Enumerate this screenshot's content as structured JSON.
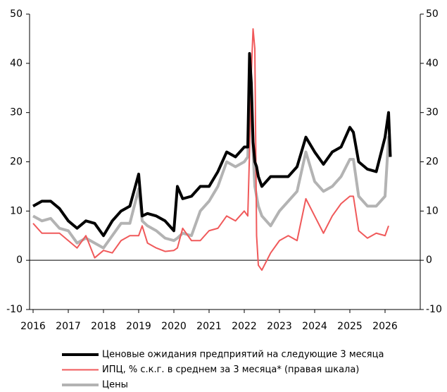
{
  "chart_data": {
    "type": "line",
    "x": [
      2016.0,
      2016.25,
      2016.5,
      2016.75,
      2017.0,
      2017.25,
      2017.5,
      2017.75,
      2018.0,
      2018.25,
      2018.5,
      2018.75,
      2019.0,
      2019.1,
      2019.25,
      2019.5,
      2019.75,
      2020.0,
      2020.1,
      2020.25,
      2020.5,
      2020.75,
      2021.0,
      2021.25,
      2021.5,
      2021.75,
      2022.0,
      2022.1,
      2022.15,
      2022.2,
      2022.25,
      2022.3,
      2022.35,
      2022.4,
      2022.5,
      2022.75,
      2023.0,
      2023.25,
      2023.5,
      2023.75,
      2024.0,
      2024.25,
      2024.5,
      2024.75,
      2025.0,
      2025.1,
      2025.25,
      2025.5,
      2025.75,
      2026.0,
      2026.1,
      2026.15
    ],
    "series": [
      {
        "name": "Цены",
        "color": "#b3b3b3",
        "width": 4,
        "values": [
          9,
          8,
          8.5,
          6.5,
          6,
          3.5,
          4.5,
          3.5,
          2.5,
          5,
          7.5,
          7.5,
          14.5,
          8,
          7,
          6,
          4.5,
          4,
          4.5,
          5.5,
          5,
          10,
          12,
          15,
          20,
          19,
          20,
          21,
          34,
          31,
          22,
          15,
          13,
          11,
          9,
          7,
          10,
          12,
          14,
          22,
          16,
          14,
          15,
          17,
          20.5,
          20.5,
          13,
          11,
          11,
          13,
          25,
          21
        ]
      },
      {
        "name": "ИПЦ, % с.к.г. в среднем за 3 месяца* (правая шкала)",
        "color": "#f0595a",
        "width": 2,
        "axis": "y2",
        "values": [
          7.5,
          5.5,
          5.5,
          5.5,
          4,
          2.5,
          5,
          0.5,
          2,
          1.5,
          4,
          5,
          5,
          7,
          3.5,
          2.5,
          1.8,
          2,
          2.5,
          6.5,
          4,
          4,
          6,
          6.5,
          9,
          8,
          10,
          9,
          22,
          38,
          47,
          43,
          5,
          -1,
          -2,
          1.5,
          4,
          5,
          4,
          12.5,
          9,
          5.5,
          9,
          11.5,
          13,
          13,
          6,
          4.5,
          5.5,
          5,
          7,
          null
        ]
      },
      {
        "name": "Ценовые ожидания предприятий на следующие 3 месяца",
        "color": "#000000",
        "width": 4,
        "values": [
          11,
          12,
          12,
          10.5,
          8,
          6.5,
          8,
          7.5,
          5,
          8,
          10,
          11,
          17.5,
          9,
          9.5,
          9,
          8,
          6,
          15,
          12.5,
          13,
          15,
          15,
          18,
          22,
          21,
          23,
          23,
          42,
          36,
          24,
          20,
          19,
          17,
          15,
          17,
          17,
          17,
          19,
          25,
          22,
          19.5,
          22,
          23,
          27,
          26,
          20,
          18.5,
          18,
          25,
          30,
          21
        ]
      }
    ],
    "legend_order": [
      2,
      1,
      0
    ],
    "xlim": [
      2015.9,
      2027
    ],
    "xticks": [
      2016,
      2017,
      2018,
      2019,
      2020,
      2021,
      2022,
      2023,
      2024,
      2025,
      2026
    ],
    "ylim": [
      -10,
      50
    ],
    "yticks": [
      -10,
      0,
      10,
      20,
      30,
      40,
      50
    ],
    "y2lim": [
      -10,
      50
    ],
    "y2ticks": [
      -10,
      0,
      10,
      20,
      30,
      40,
      50
    ]
  }
}
